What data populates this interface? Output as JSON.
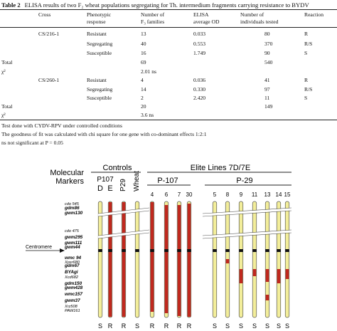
{
  "table": {
    "caption_label": "Table 2",
    "caption_text": "ELISA results of two F₂ wheat populations segregating for Th. intermedium fragments carrying resistance to BYDV",
    "headers": {
      "cross": "Cross",
      "pheno1": "Phenotypic",
      "pheno2": "response",
      "fam1": "Number of",
      "fam2": "F₃ families",
      "elisa1": "ELISA",
      "elisa2": "average OD",
      "ind1": "Number of",
      "ind2": "individuals tested",
      "reaction": "Reaction"
    },
    "groups": [
      {
        "cross": "CS/216-1",
        "rows": [
          {
            "response": "Resistant",
            "families": "13",
            "od": "0.033",
            "individuals": "80",
            "reaction": "R"
          },
          {
            "response": "Segregating",
            "families": "40",
            "od": "0.553",
            "individuals": "370",
            "reaction": "R/S"
          },
          {
            "response": "Susceptible",
            "families": "16",
            "od": "1.749",
            "individuals": "90",
            "reaction": "S"
          }
        ],
        "total_label": "Total",
        "total_families": "69",
        "total_individuals": "540",
        "chi_label": "χ²",
        "chi_value": "2.01 ns"
      },
      {
        "cross": "CS/260-1",
        "rows": [
          {
            "response": "Resistant",
            "families": "4",
            "od": "0.036",
            "individuals": "41",
            "reaction": "R"
          },
          {
            "response": "Segregating",
            "families": "14",
            "od": "0.330",
            "individuals": "97",
            "reaction": "R/S"
          },
          {
            "response": "Susceptible",
            "families": "2",
            "od": "2.420",
            "individuals": "11",
            "reaction": "S"
          }
        ],
        "total_label": "Total",
        "total_families": "20",
        "total_individuals": "149",
        "chi_label": "χ²",
        "chi_value": "3.6 ns"
      }
    ],
    "notes": [
      "Test done with CYDV-RPV under controlled conditions",
      "The goodness of fit was calculated with chi square for one gene with co-dominant effects 1:2:1",
      "ns not significant at P = 0.05"
    ]
  },
  "figure": {
    "markers_title_1": "Molecular",
    "markers_title_2": "Markers",
    "controls_label": "Controls",
    "elite_label": "Elite Lines 7D/7E",
    "p107_sub": "P107",
    "d_label": "D",
    "e_label": "E",
    "p29_label": "P29",
    "wheat_label": "Wheat",
    "p107_group": "P-107",
    "p29_group": "P-29",
    "centromere_label": "Centromere",
    "markers": [
      "cdo 545",
      "gdm86",
      "gwm130",
      "cdo 475",
      "gwm295",
      "gwm111",
      "gwm44",
      "wmc 94",
      "Xpsr680",
      "gdm67",
      "BYAgi",
      "Xcd682",
      "gdm150",
      "gwm428",
      "wmc157",
      "gwm37",
      "Xrz508",
      "PAW161"
    ],
    "lines_p107": [
      "4",
      "6",
      "7",
      "30"
    ],
    "lines_p29": [
      "5",
      "8",
      "9",
      "11",
      "13",
      "14",
      "15"
    ],
    "controls_reaction": [
      "S",
      "R",
      "R",
      "S"
    ],
    "p107_reaction": [
      "R",
      "R",
      "R",
      "R"
    ],
    "p29_reaction": [
      "S",
      "S",
      "S",
      "S",
      "S",
      "S",
      "S"
    ],
    "colors": {
      "wheat_chromatin": "#f3ee9a",
      "thinopyrum_chromatin": "#c0281e",
      "outline": "#555555"
    }
  }
}
